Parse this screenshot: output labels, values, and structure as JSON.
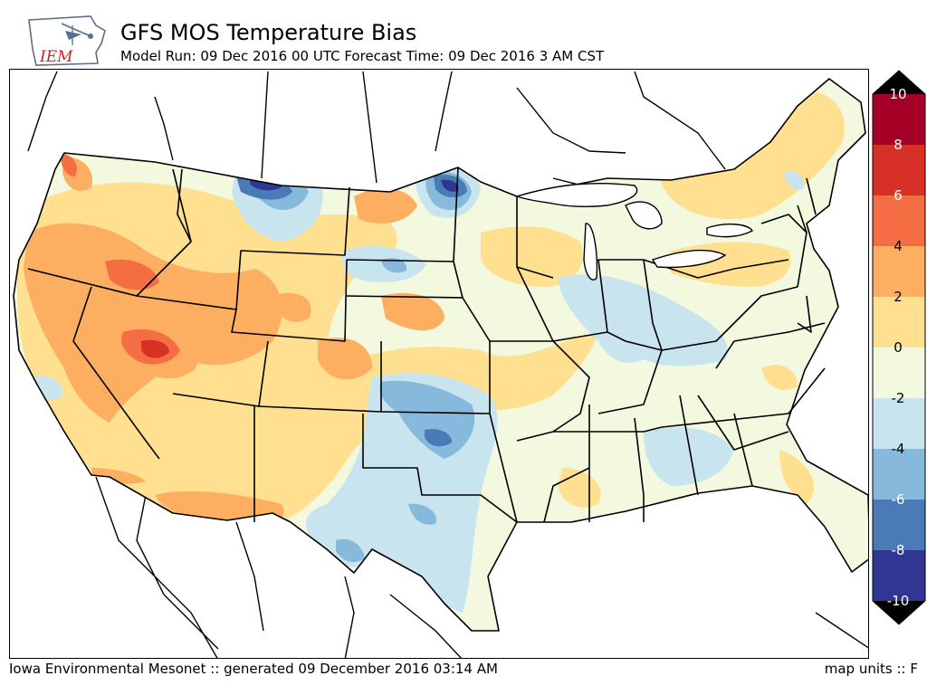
{
  "header": {
    "logo_text": "IEM",
    "title": "GFS MOS Temperature Bias",
    "subtitle": "Model Run: 09 Dec 2016 00 UTC Forecast Time: 09 Dec 2016 3 AM CST"
  },
  "colorbar": {
    "ticks": [
      "10",
      "8",
      "6",
      "4",
      "2",
      "0",
      "-2",
      "-4",
      "-6",
      "-8",
      "-10"
    ],
    "colors": [
      "#a50026",
      "#d73027",
      "#f46d43",
      "#fdae61",
      "#fee090",
      "#f2f9df",
      "#c7e4ef",
      "#86b9db",
      "#4a7bb7",
      "#313695"
    ],
    "over_color": "#000000",
    "under_color": "#000000"
  },
  "footer": {
    "credit": "Iowa Environmental Mesonet :: generated 09 December 2016 03:14 AM",
    "units": "map units :: F"
  },
  "icons": {
    "logo": "iowa-state-weather-logo-icon"
  }
}
